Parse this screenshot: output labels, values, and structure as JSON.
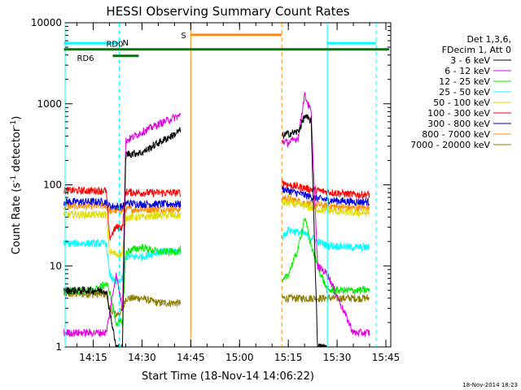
{
  "chart_data": {
    "type": "line",
    "title": "HESSI Observing Summary Count Rates",
    "xlabel": "Start Time (18-Nov-14 14:06:22)",
    "ylabel": "Count Rate (s⁻¹ detector⁻¹)",
    "ylabel_parts": {
      "base": "Count Rate (s",
      "exp1": "-1",
      "mid": " detector",
      "exp2": "-1",
      "end": ")"
    },
    "y_scale": "log",
    "xlim": [
      "14:06:22",
      "15:46:30"
    ],
    "ylim": [
      1,
      10000
    ],
    "x_ticks": [
      "14:15",
      "14:30",
      "14:45",
      "15:00",
      "15:15",
      "15:30",
      "15:45"
    ],
    "y_ticks": [
      "1",
      "10",
      "100",
      "1000",
      "10000"
    ],
    "grid": false,
    "legend_position": "right",
    "timestamp": "18-Nov-2014 18:23",
    "legend_header": [
      "Det 1,3,6,",
      "FDecim 1, Att 0"
    ],
    "series": [
      {
        "name": "3 - 6 keV",
        "color": "#000000",
        "points": [
          [
            "14:06",
            5
          ],
          [
            "14:15",
            5
          ],
          [
            "14:19",
            5
          ],
          [
            "14:20",
            3
          ],
          [
            "14:22",
            1
          ],
          [
            "14:24",
            1
          ],
          [
            "14:25",
            240
          ],
          [
            "14:30",
            250
          ],
          [
            "14:35",
            330
          ],
          [
            "14:40",
            420
          ],
          [
            "14:42",
            480
          ],
          [
            "15:13",
            400
          ],
          [
            "15:15",
            430
          ],
          [
            "15:18",
            450
          ],
          [
            "15:20",
            700
          ],
          [
            "15:22",
            620
          ],
          [
            "15:24",
            1
          ],
          [
            "15:27",
            1
          ]
        ]
      },
      {
        "name": "6 - 12 keV",
        "color": "#e000e0",
        "points": [
          [
            "14:06",
            1.5
          ],
          [
            "14:15",
            1.5
          ],
          [
            "14:19",
            1.5
          ],
          [
            "14:20",
            2.5
          ],
          [
            "14:22",
            8
          ],
          [
            "14:24",
            3
          ],
          [
            "14:25",
            350
          ],
          [
            "14:30",
            450
          ],
          [
            "14:35",
            560
          ],
          [
            "14:40",
            680
          ],
          [
            "14:42",
            720
          ],
          [
            "15:13",
            350
          ],
          [
            "15:15",
            330
          ],
          [
            "15:18",
            380
          ],
          [
            "15:20",
            1300
          ],
          [
            "15:22",
            800
          ],
          [
            "15:24",
            10
          ],
          [
            "15:27",
            8
          ],
          [
            "15:35",
            1.5
          ],
          [
            "15:40",
            1.5
          ]
        ]
      },
      {
        "name": "12 - 25 keV",
        "color": "#00ee00",
        "points": [
          [
            "14:06",
            5
          ],
          [
            "14:15",
            5
          ],
          [
            "14:19",
            6
          ],
          [
            "14:20",
            5
          ],
          [
            "14:22",
            2
          ],
          [
            "14:24",
            2
          ],
          [
            "14:25",
            15
          ],
          [
            "14:30",
            17
          ],
          [
            "14:35",
            15
          ],
          [
            "14:40",
            15
          ],
          [
            "14:42",
            16
          ],
          [
            "15:13",
            6
          ],
          [
            "15:15",
            8
          ],
          [
            "15:18",
            16
          ],
          [
            "15:20",
            40
          ],
          [
            "15:22",
            18
          ],
          [
            "15:24",
            10
          ],
          [
            "15:27",
            5
          ],
          [
            "15:30",
            5
          ],
          [
            "15:35",
            5
          ],
          [
            "15:40",
            5
          ]
        ]
      },
      {
        "name": "25 - 50 keV",
        "color": "#00ffff",
        "points": [
          [
            "14:06",
            19
          ],
          [
            "14:15",
            19
          ],
          [
            "14:19",
            19
          ],
          [
            "14:20",
            8
          ],
          [
            "14:22",
            6
          ],
          [
            "14:24",
            7
          ],
          [
            "14:25",
            13
          ],
          [
            "14:30",
            13
          ],
          [
            "14:35",
            15
          ],
          [
            "14:40",
            15
          ],
          [
            "14:42",
            15
          ],
          [
            "15:13",
            22
          ],
          [
            "15:15",
            28
          ],
          [
            "15:20",
            25
          ],
          [
            "15:24",
            20
          ],
          [
            "15:27",
            18
          ],
          [
            "15:35",
            17
          ],
          [
            "15:40",
            17
          ]
        ]
      },
      {
        "name": "50 - 100 keV",
        "color": "#dddd00",
        "points": [
          [
            "14:06",
            43
          ],
          [
            "14:15",
            43
          ],
          [
            "14:19",
            43
          ],
          [
            "14:20",
            15
          ],
          [
            "14:22",
            14
          ],
          [
            "14:24",
            14
          ],
          [
            "14:25",
            40
          ],
          [
            "14:30",
            40
          ],
          [
            "14:35",
            42
          ],
          [
            "14:40",
            42
          ],
          [
            "14:42",
            42
          ],
          [
            "15:13",
            60
          ],
          [
            "15:15",
            60
          ],
          [
            "15:20",
            55
          ],
          [
            "15:24",
            50
          ],
          [
            "15:27",
            48
          ],
          [
            "15:35",
            45
          ],
          [
            "15:40",
            45
          ]
        ]
      },
      {
        "name": "100 - 300 keV",
        "color": "#ff0000",
        "points": [
          [
            "14:06",
            85
          ],
          [
            "14:15",
            85
          ],
          [
            "14:19",
            85
          ],
          [
            "14:20",
            22
          ],
          [
            "14:22",
            30
          ],
          [
            "14:24",
            30
          ],
          [
            "14:25",
            82
          ],
          [
            "14:30",
            80
          ],
          [
            "14:35",
            80
          ],
          [
            "14:40",
            80
          ],
          [
            "14:42",
            80
          ],
          [
            "15:13",
            110
          ],
          [
            "15:15",
            100
          ],
          [
            "15:20",
            92
          ],
          [
            "15:24",
            85
          ],
          [
            "15:27",
            82
          ],
          [
            "15:35",
            76
          ],
          [
            "15:40",
            76
          ]
        ]
      },
      {
        "name": "300 - 800 keV",
        "color": "#0000dd",
        "points": [
          [
            "14:06",
            62
          ],
          [
            "14:15",
            62
          ],
          [
            "14:19",
            62
          ],
          [
            "14:20",
            55
          ],
          [
            "14:22",
            54
          ],
          [
            "14:24",
            54
          ],
          [
            "14:25",
            60
          ],
          [
            "14:30",
            58
          ],
          [
            "14:35",
            58
          ],
          [
            "14:40",
            58
          ],
          [
            "14:42",
            58
          ],
          [
            "15:13",
            90
          ],
          [
            "15:15",
            85
          ],
          [
            "15:20",
            75
          ],
          [
            "15:24",
            68
          ],
          [
            "15:27",
            65
          ],
          [
            "15:35",
            62
          ],
          [
            "15:40",
            62
          ]
        ]
      },
      {
        "name": "800 - 7000 keV",
        "color": "#ff8c00",
        "points": [
          [
            "14:06",
            55
          ],
          [
            "14:15",
            55
          ],
          [
            "14:19",
            55
          ],
          [
            "14:20",
            48
          ],
          [
            "14:22",
            48
          ],
          [
            "14:24",
            48
          ],
          [
            "14:25",
            50
          ],
          [
            "14:30",
            50
          ],
          [
            "14:35",
            50
          ],
          [
            "14:40",
            50
          ],
          [
            "14:42",
            50
          ],
          [
            "15:13",
            70
          ],
          [
            "15:15",
            68
          ],
          [
            "15:20",
            60
          ],
          [
            "15:24",
            57
          ],
          [
            "15:27",
            55
          ],
          [
            "15:35",
            52
          ],
          [
            "15:40",
            52
          ]
        ]
      },
      {
        "name": "7000 - 20000 keV",
        "color": "#8b7d00",
        "points": [
          [
            "14:06",
            4.5
          ],
          [
            "14:15",
            4.5
          ],
          [
            "14:19",
            4.5
          ],
          [
            "14:20",
            3
          ],
          [
            "14:22",
            2.5
          ],
          [
            "14:24",
            2.8
          ],
          [
            "14:25",
            4
          ],
          [
            "14:30",
            4
          ],
          [
            "14:35",
            3.5
          ],
          [
            "14:40",
            3.5
          ],
          [
            "14:42",
            3.5
          ],
          [
            "15:13",
            4
          ],
          [
            "15:15",
            4
          ],
          [
            "15:20",
            4
          ],
          [
            "15:24",
            4
          ],
          [
            "15:27",
            4
          ],
          [
            "15:35",
            4
          ],
          [
            "15:40",
            4
          ]
        ]
      }
    ],
    "gaps": [
      [
        "14:42",
        "15:13"
      ]
    ],
    "flags": [
      {
        "name": "N",
        "label": "N",
        "color": "#00ffff",
        "y": 5600,
        "spans": [
          [
            "14:06",
            "14:23"
          ],
          [
            "15:27",
            "15:42"
          ]
        ]
      },
      {
        "name": "RD0",
        "label": "RD0",
        "color": "#007700",
        "y": 4700,
        "spans": [
          [
            "14:06",
            "15:46"
          ]
        ]
      },
      {
        "name": "RD6",
        "label": "RD6",
        "color": "#007700",
        "y": 3900,
        "spans": [
          [
            "14:21",
            "14:29"
          ]
        ]
      },
      {
        "name": "S",
        "label": "S",
        "color": "#ff8c00",
        "y": 7100,
        "spans": [
          [
            "14:45",
            "15:13"
          ]
        ]
      }
    ],
    "vlines": [
      {
        "t": "14:06:22",
        "color": "#00ffff",
        "dashed": false
      },
      {
        "t": "14:23",
        "color": "#00ffff",
        "dashed": true
      },
      {
        "t": "14:45",
        "color": "#ff8c00",
        "dashed": false
      },
      {
        "t": "15:13",
        "color": "#ff8c00",
        "dashed": true
      },
      {
        "t": "15:27",
        "color": "#00ffff",
        "dashed": false
      },
      {
        "t": "15:42",
        "color": "#00ffff",
        "dashed": true
      }
    ]
  }
}
